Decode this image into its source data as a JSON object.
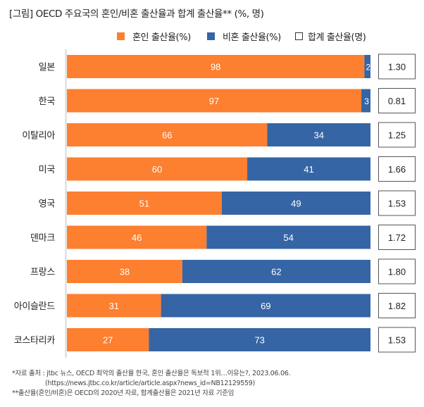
{
  "title": "[그림] OECD 주요국의 혼인/비혼 출산율과 합계 출산율** (%, 명)",
  "legend": [
    {
      "label": "혼인 출산율(%)",
      "kind": "swatch",
      "color": "#FD7F30"
    },
    {
      "label": "비혼 출산율(%)",
      "kind": "swatch",
      "color": "#3565A5"
    },
    {
      "label": "합계 출산율(명)",
      "kind": "box",
      "color": "#FFFFFF"
    }
  ],
  "chart_data": {
    "type": "bar",
    "orientation": "horizontal",
    "stacked": true,
    "normalized": true,
    "title": "[그림] OECD 주요국의 혼인/비혼 출산율과 합계 출산율** (%, 명)",
    "xlabel": "",
    "ylabel": "",
    "categories": [
      "일본",
      "한국",
      "이탈리아",
      "미국",
      "영국",
      "덴마크",
      "프랑스",
      "아이슬란드",
      "코스타리카"
    ],
    "series": [
      {
        "name": "혼인 출산율(%)",
        "color": "#FD7F30",
        "values": [
          98,
          97,
          66,
          60,
          51,
          46,
          38,
          31,
          27
        ]
      },
      {
        "name": "비혼 출산율(%)",
        "color": "#3565A5",
        "values": [
          2,
          3,
          34,
          41,
          49,
          54,
          62,
          69,
          73
        ]
      }
    ],
    "side_values": {
      "name": "합계 출산율(명)",
      "values": [
        "1.30",
        "0.81",
        "1.25",
        "1.66",
        "1.53",
        "1.72",
        "1.80",
        "1.82",
        "1.53"
      ]
    },
    "legend_position": "top-center",
    "grid": false
  },
  "source": {
    "line1": "*자료 출처 : jtbc 뉴스, OECD 최악의 출산율 한국, 혼인 출산율은 독보적 1위…이유는?, 2023.06.06.",
    "line2": "(https://news.jtbc.co.kr/article/article.aspx?news_id=NB12129559)",
    "line3": "**출산율(혼인/비혼)은 OECD의 2020년 자료, 합계출산율은 2021년 자료 기준임"
  }
}
